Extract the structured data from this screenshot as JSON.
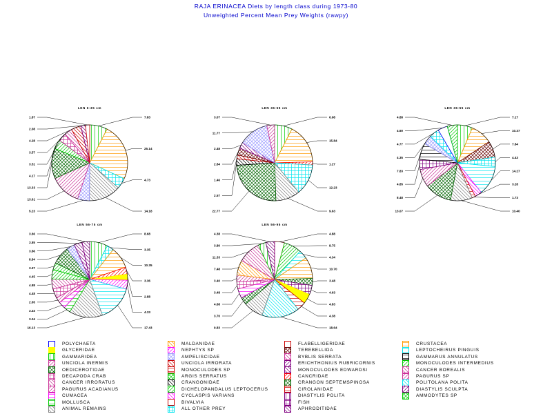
{
  "header": {
    "title": "RAJA ERINACEA Diets by length class during 1973-80",
    "subtitle": "Unweighted Percent Mean Prey Weights (rawpy)"
  },
  "colors": {
    "title": "#0000cc",
    "POLYCHAETA": "#0000ff",
    "GLYCERIDAE": "#ffff00",
    "GAMMARIDEA": "#00cc00",
    "UNCIOLA INERMIS": "#cc3399",
    "OEDICEROTIDAE": "#006600",
    "DECAPODA CRAB": "#cc3399",
    "CANCER IRRORATUS": "#cc3399",
    "PAGURUS ACADIANUS": "#cc3399",
    "CUMACEA": "#ff00ff",
    "MOLLUSCA": "#00cc00",
    "ANIMAL REMAINS": "#808080",
    "MALDANIDAE": "#ff9900",
    "NEPHTYS SP": "#ff00ff",
    "AMPELISCIDAE": "#9999ff",
    "UNCIOLA IRRORATA": "#cc0000",
    "MONOCULODES SP": "#cc0000",
    "ARGIS SERRATUS": "#00cc00",
    "CRANGONIDAE": "#000000",
    "DICHELOPANDALUS LEPTOCERUS": "#00cc00",
    "CYCLASPIS VARIANS": "#ff00ff",
    "BIVALVIA": "#cc0000",
    "ALL OTHER PREY": "#00e5ee",
    "FLABELLIGERIDAE": "#cc0000",
    "TEREBELLIDA": "#660000",
    "BYBLIS SERRATA": "#cc3399",
    "ERICHTHONIUS RUBRICORNIS": "#800080",
    "MONOCULODES EDWARDSI": "#800080",
    "CANCRIDAE": "#ff0000",
    "CRANGON SEPTEMSPINOSA": "#006600",
    "CIROLANIDAE": "#cc0000",
    "DIASTYLIS POLITA": "#800080",
    "FISH": "#800080",
    "APHRODITIDAE": "#800080",
    "CRUSTACEA": "#ff9900",
    "LEPTOCHEIRUS PINGUIS": "#00e5ee",
    "GAMMARUS ANNULATUS": "#000000",
    "MONOCULODES INTERMEDIUS": "#00cc00",
    "CANCER BOREALIS": "#cc3399",
    "PAGURUS SP": "#cc3399",
    "POLITOLANA POLITA": "#00e5ee",
    "DIASTYLIS SCULPTA": "#800080",
    "AMMODYTES SP": "#00cc00"
  },
  "legend": [
    {
      "label": "POLYCHAETA",
      "pattern": "outline"
    },
    {
      "label": "GLYCERIDAE",
      "pattern": "solid"
    },
    {
      "label": "GAMMARIDEA",
      "pattern": "vertical"
    },
    {
      "label": "UNCIOLA INERMIS",
      "pattern": "diag-right"
    },
    {
      "label": "OEDICEROTIDAE",
      "pattern": "crosshatch-diag"
    },
    {
      "label": "DECAPODA CRAB",
      "pattern": "grid"
    },
    {
      "label": "CANCER IRRORATUS",
      "pattern": "diag-left"
    },
    {
      "label": "PAGURUS ACADIANUS",
      "pattern": "diag-right"
    },
    {
      "label": "CUMACEA",
      "pattern": "horizontal"
    },
    {
      "label": "MOLLUSCA",
      "pattern": "horizontal"
    },
    {
      "label": "ANIMAL REMAINS",
      "pattern": "diag-left"
    },
    {
      "label": "MALDANIDAE",
      "pattern": "diag-left"
    },
    {
      "label": "NEPHTYS SP",
      "pattern": "diag-right"
    },
    {
      "label": "AMPELISCIDAE",
      "pattern": "crosshatch-diag"
    },
    {
      "label": "UNCIOLA IRRORATA",
      "pattern": "diag-left"
    },
    {
      "label": "MONOCULODES SP",
      "pattern": "horizontal"
    },
    {
      "label": "ARGIS SERRATUS",
      "pattern": "crosshatch-diag"
    },
    {
      "label": "CRANGONIDAE",
      "pattern": "diag-left"
    },
    {
      "label": "DICHELOPANDALUS LEPTOCERUS",
      "pattern": "diag-right"
    },
    {
      "label": "CYCLASPIS VARIANS",
      "pattern": "diag-left"
    },
    {
      "label": "BIVALVIA",
      "pattern": "outline"
    },
    {
      "label": "ALL OTHER PREY",
      "pattern": "grid"
    },
    {
      "label": "FLABELLIGERIDAE",
      "pattern": "outline"
    },
    {
      "label": "TEREBELLIDA",
      "pattern": "crosshatch-diag"
    },
    {
      "label": "BYBLIS SERRATA",
      "pattern": "diag-left"
    },
    {
      "label": "ERICHTHONIUS RUBRICORNIS",
      "pattern": "diag-right"
    },
    {
      "label": "MONOCULODES EDWARDSI",
      "pattern": "diag-left"
    },
    {
      "label": "CANCRIDAE",
      "pattern": "diag-right"
    },
    {
      "label": "CRANGON SEPTEMSPINOSA",
      "pattern": "crosshatch-diag"
    },
    {
      "label": "CIROLANIDAE",
      "pattern": "horizontal"
    },
    {
      "label": "DIASTYLIS POLITA",
      "pattern": "vertical"
    },
    {
      "label": "FISH",
      "pattern": "grid"
    },
    {
      "label": "APHRODITIDAE",
      "pattern": "diag-left"
    },
    {
      "label": "CRUSTACEA",
      "pattern": "horizontal"
    },
    {
      "label": "LEPTOCHEIRUS PINGUIS",
      "pattern": "horizontal"
    },
    {
      "label": "GAMMARUS ANNULATUS",
      "pattern": "horizontal"
    },
    {
      "label": "MONOCULODES INTERMEDIUS",
      "pattern": "diag-right"
    },
    {
      "label": "CANCER BOREALIS",
      "pattern": "diag-left"
    },
    {
      "label": "PAGURUS SP",
      "pattern": "diag-right"
    },
    {
      "label": "POLITOLANA POLITA",
      "pattern": "diag-left"
    },
    {
      "label": "DIASTYLIS SCULPTA",
      "pattern": "diag-right"
    },
    {
      "label": "AMMODYTES SP",
      "pattern": "crosshatch-diag"
    }
  ],
  "chart_data": [
    {
      "type": "pie",
      "title": "LEN 6-35 cm",
      "slices": [
        {
          "category": "GAMMARIDEA",
          "value": 7.83
        },
        {
          "category": "CRUSTACEA",
          "value": 25.14
        },
        {
          "category": "ALL OTHER PREY",
          "value": 4.73
        },
        {
          "category": "ANIMAL REMAINS",
          "value": 14.18
        },
        {
          "category": "AMPELISCIDAE",
          "value": 5.23
        },
        {
          "category": "UNCIOLA INERMIS",
          "value": 13.61
        },
        {
          "category": "OEDICEROTIDAE",
          "value": 13.33
        },
        {
          "category": "MONOCULODES INTERMEDIUS",
          "value": 4.17
        },
        {
          "category": "DECAPODA CRAB",
          "value": 3.51
        },
        {
          "category": "CANCER IRRORATUS",
          "value": 3.57
        },
        {
          "category": "UNCIOLA IRRORATA",
          "value": 4.28
        },
        {
          "category": "APHRODITIDAE",
          "value": 2.08
        },
        {
          "category": "FLABELLIGERIDAE",
          "value": 1.87
        }
      ]
    },
    {
      "type": "pie",
      "title": "LEN 36-55 cm",
      "slices": [
        {
          "category": "GAMMARIDEA",
          "value": 6.98
        },
        {
          "category": "CRUSTACEA",
          "value": 15.84
        },
        {
          "category": "CANCRIDAE",
          "value": 1.27
        },
        {
          "category": "ALL OTHER PREY",
          "value": 12.23
        },
        {
          "category": "ANIMAL REMAINS",
          "value": 9.63
        },
        {
          "category": "OEDICEROTIDAE",
          "value": 22.77
        },
        {
          "category": "CRANGONIDAE",
          "value": 2.57
        },
        {
          "category": "UNCIOLA IRRORATA",
          "value": 1.46
        },
        {
          "category": "TEREBELLIDA",
          "value": 2.84
        },
        {
          "category": "MONOCULODES EDWARDSI",
          "value": 2.48
        },
        {
          "category": "AMPELISCIDAE",
          "value": 11.77
        },
        {
          "category": "PAGURUS ACADIANUS",
          "value": 3.07
        }
      ]
    },
    {
      "type": "pie",
      "title": "LEN 36-55 cm",
      "slices": [
        {
          "category": "GAMMARIDEA",
          "value": 7.17
        },
        {
          "category": "CRUSTACEA",
          "value": 10.37
        },
        {
          "category": "TEREBELLIDA",
          "value": 7.84
        },
        {
          "category": "ALL OTHER PREY",
          "value": 4.43
        },
        {
          "category": "LEPTOCHEIRUS PINGUIS",
          "value": 14.27
        },
        {
          "category": "CYCLASPIS VARIANS",
          "value": 3.28
        },
        {
          "category": "MONOCULODES SP",
          "value": 1.73
        },
        {
          "category": "ANIMAL REMAINS",
          "value": 10.4
        },
        {
          "category": "OEDICEROTIDAE",
          "value": 13.07
        },
        {
          "category": "UNCIOLA INERMIS",
          "value": 8.48
        },
        {
          "category": "FISH",
          "value": 4.85
        },
        {
          "category": "GAMMARUS ANNULATUS",
          "value": 7.83
        },
        {
          "category": "AMPELISCIDAE",
          "value": 4.35
        },
        {
          "category": "ALL OTHER PREY",
          "value": 4.77
        },
        {
          "category": "POLYCHAETA",
          "value": 4.6
        },
        {
          "category": "MONOCULODES INTERMEDIUS",
          "value": 4.88
        }
      ]
    },
    {
      "type": "pie",
      "title": "LEN 56-75 cm",
      "slices": [
        {
          "category": "GAMMARIDEA",
          "value": 8.68
        },
        {
          "category": "ALL OTHER PREY",
          "value": 3.35
        },
        {
          "category": "CRUSTACEA",
          "value": 10.35
        },
        {
          "category": "CANCRIDAE",
          "value": 3.36
        },
        {
          "category": "GLYCERIDAE",
          "value": 2.88
        },
        {
          "category": "NEPHTYS SP",
          "value": 4.33
        },
        {
          "category": "LEPTOCHEIRUS PINGUIS",
          "value": 17.43
        },
        {
          "category": "ANIMAL REMAINS",
          "value": 16.13
        },
        {
          "category": "MOLLUSCA",
          "value": 3.24
        },
        {
          "category": "CUMACEA",
          "value": 3.33
        },
        {
          "category": "PAGURUS ACADIANUS",
          "value": 2.65
        },
        {
          "category": "DECAPODA CRAB",
          "value": 4.48
        },
        {
          "category": "CANCER IRRORATUS",
          "value": 4.88
        },
        {
          "category": "DICHELOPANDALUS LEPTOCERUS",
          "value": 4.45
        },
        {
          "category": "MONOCULODES INTERMEDIUS",
          "value": 3.37
        },
        {
          "category": "OEDICEROTIDAE",
          "value": 8.84
        },
        {
          "category": "AMPELISCIDAE",
          "value": 3.86
        },
        {
          "category": "MONOCULODES EDWARDSI",
          "value": 3.85
        },
        {
          "category": "APHRODITIDAE",
          "value": 3.66
        }
      ]
    },
    {
      "type": "pie",
      "title": "LEN 56-95 cm",
      "slices": [
        {
          "category": "FLABELLIGERIDAE",
          "value": 4.88
        },
        {
          "category": "MONOCULODES INTERMEDIUS",
          "value": 8.75
        },
        {
          "category": "LEPTOCHEIRUS PINGUIS",
          "value": 4.34
        },
        {
          "category": "CRUSTACEA",
          "value": 10.7
        },
        {
          "category": "CRANGON SEPTEMSPINOSA",
          "value": 3.48
        },
        {
          "category": "FISH",
          "value": 4.63
        },
        {
          "category": "GLYCERIDAE",
          "value": 4.83
        },
        {
          "category": "MONOCULODES SP",
          "value": 4.38
        },
        {
          "category": "POLITOLANA POLITA",
          "value": 18.64
        },
        {
          "category": "ANIMAL REMAINS",
          "value": 9.83
        },
        {
          "category": "OEDICEROTIDAE",
          "value": 3.7
        },
        {
          "category": "CUMACEA",
          "value": 4.68
        },
        {
          "category": "DECAPODA CRAB",
          "value": 3.48
        },
        {
          "category": "UNCIOLA INERMIS",
          "value": 3.4
        },
        {
          "category": "MALDANIDAE",
          "value": 7.48
        },
        {
          "category": "CANCER IRRORATUS",
          "value": 11.33
        },
        {
          "category": "GAMMARIDEA",
          "value": 3.8
        },
        {
          "category": "APHRODITIDAE",
          "value": 4.38
        }
      ]
    }
  ]
}
